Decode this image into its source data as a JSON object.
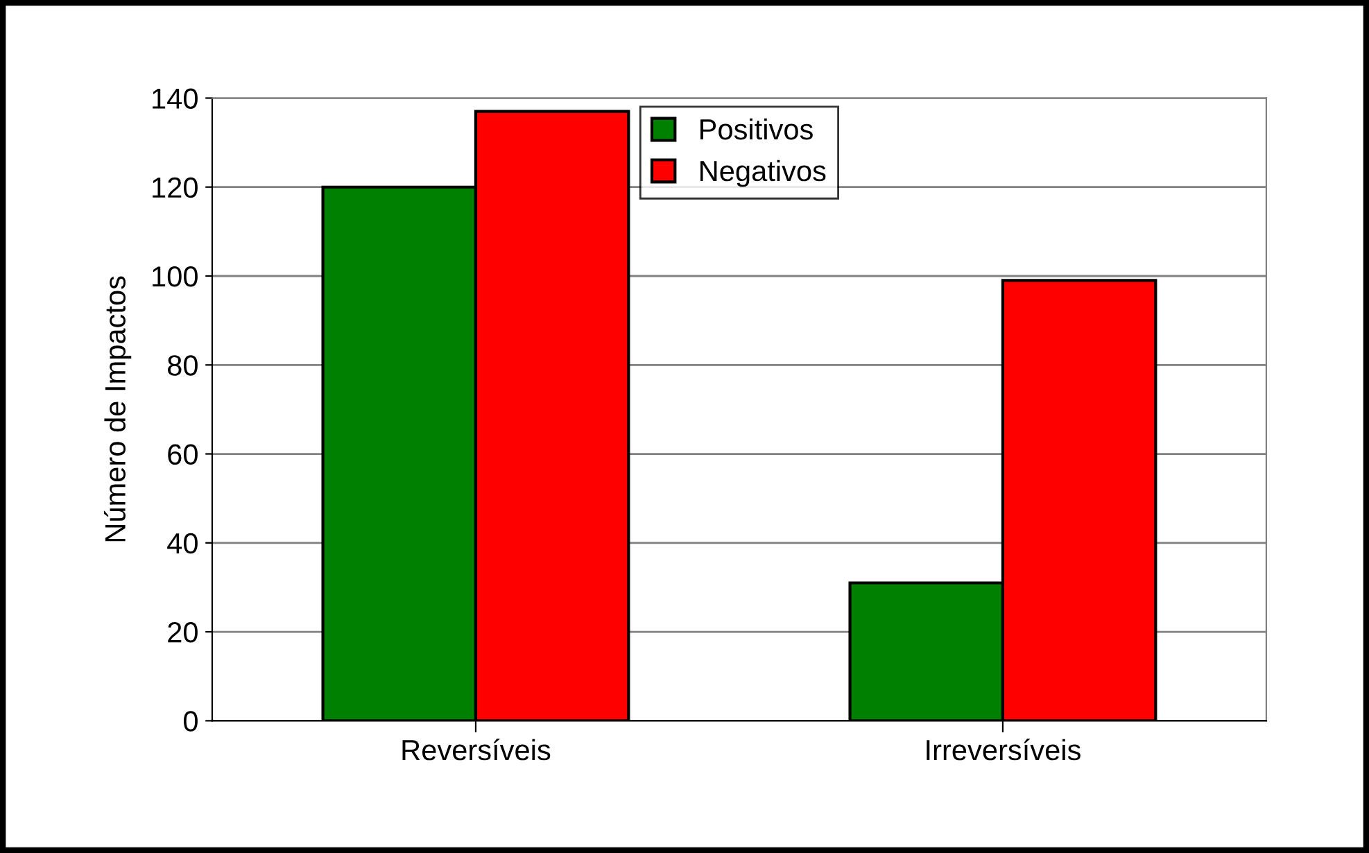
{
  "chart_data": {
    "type": "bar",
    "ylabel": "Número de Impactos",
    "categories": [
      "Reversíveis",
      "Irreversíveis"
    ],
    "series": [
      {
        "name": "Positivos",
        "color": "#008000",
        "values": [
          120,
          31
        ]
      },
      {
        "name": "Negativos",
        "color": "#ff0000",
        "values": [
          137,
          99
        ]
      }
    ],
    "ylim": [
      0,
      140
    ],
    "yticks": [
      0,
      20,
      40,
      60,
      80,
      100,
      120,
      140
    ],
    "grid": "y",
    "legend": "top"
  }
}
